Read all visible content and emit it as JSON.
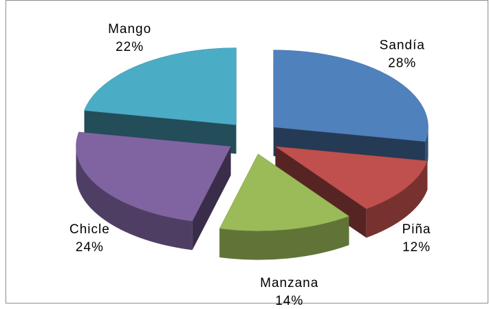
{
  "chart_data": {
    "type": "pie",
    "categories": [
      "Sandía",
      "Piña",
      "Manzana",
      "Chicle",
      "Mango"
    ],
    "values": [
      28,
      12,
      14,
      24,
      22
    ],
    "value_labels": [
      "28%",
      "12%",
      "14%",
      "24%",
      "22%"
    ],
    "colors": [
      "#4f81bd",
      "#c0504d",
      "#9bbb59",
      "#8064a2",
      "#4bacc6"
    ]
  }
}
